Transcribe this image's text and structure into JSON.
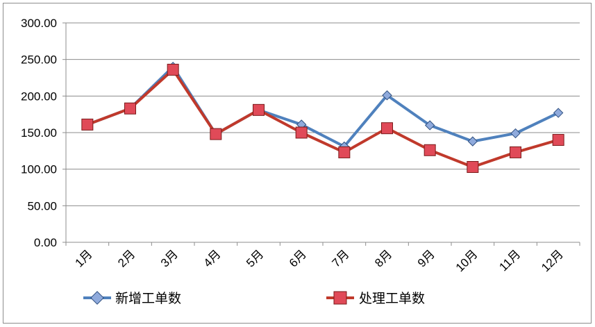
{
  "chart_data": {
    "type": "line",
    "title": "",
    "xlabel": "",
    "ylabel": "",
    "categories": [
      "1月",
      "2月",
      "3月",
      "4月",
      "5月",
      "6月",
      "7月",
      "8月",
      "9月",
      "10月",
      "11月",
      "12月"
    ],
    "ylim": [
      0,
      300
    ],
    "yticks": [
      "0.00",
      "50.00",
      "100.00",
      "150.00",
      "200.00",
      "250.00",
      "300.00"
    ],
    "grid": true,
    "legend_position": "bottom",
    "series": [
      {
        "name": "新增工单数",
        "color": "#4f81bd",
        "marker": "diamond",
        "values": [
          161,
          183,
          240,
          148,
          181,
          161,
          131,
          201,
          160,
          138,
          149,
          177
        ]
      },
      {
        "name": "处理工单数",
        "color": "#c0392b",
        "marker": "square",
        "values": [
          161,
          183,
          236,
          148,
          181,
          150,
          123,
          156,
          126,
          103,
          123,
          140
        ]
      }
    ]
  }
}
